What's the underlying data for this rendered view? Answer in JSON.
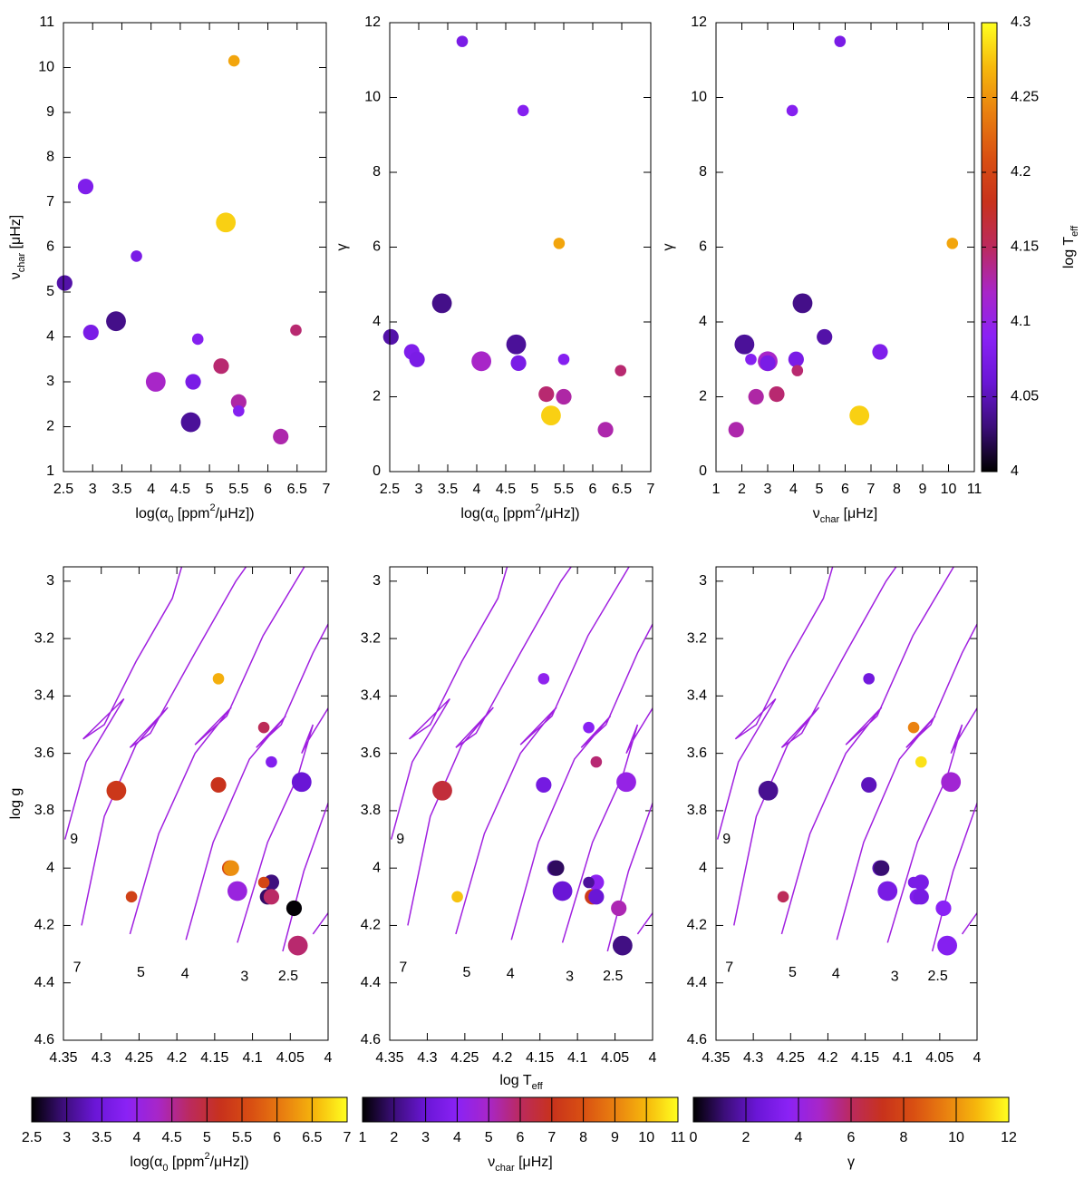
{
  "chart_data": [
    {
      "type": "scatter",
      "x": [
        2.52,
        2.88,
        2.97,
        3.4,
        3.75,
        4.08,
        4.68,
        4.72,
        4.8,
        5.2,
        5.28,
        5.42,
        5.5,
        5.5,
        6.22,
        6.48
      ],
      "y": [
        5.2,
        7.35,
        4.1,
        4.35,
        5.8,
        3.0,
        2.1,
        3.0,
        3.95,
        3.35,
        6.55,
        10.15,
        2.55,
        2.35,
        1.78,
        4.15
      ],
      "c": [
        4.045,
        4.08,
        4.075,
        4.035,
        4.075,
        4.12,
        4.04,
        4.075,
        4.085,
        4.145,
        4.28,
        4.26,
        4.13,
        4.085,
        4.128,
        4.145
      ],
      "sizes": [
        2,
        2,
        2,
        3,
        1,
        3,
        3,
        2,
        1,
        2,
        3,
        1,
        2,
        1,
        2,
        1
      ],
      "xlim": [
        2.5,
        7
      ],
      "xticks": [
        2.5,
        3,
        3.5,
        4,
        4.5,
        5,
        5.5,
        6,
        6.5,
        7
      ],
      "ylim": [
        1,
        11
      ],
      "yticks": [
        1,
        2,
        3,
        4,
        5,
        6,
        7,
        8,
        9,
        10,
        11
      ],
      "clim": [
        4,
        4.3
      ],
      "colormap": [
        "#000000",
        "#3c0e7a",
        "#6a16d6",
        "#8a22f5",
        "#a826c8",
        "#bb2a5e",
        "#c8321c",
        "#d95012",
        "#e98010",
        "#f6b80c",
        "#ffff20"
      ],
      "xlabel": [
        {
          "text": "log(α"
        },
        {
          "text": "0",
          "sub": true
        },
        {
          "text": " [ppm"
        },
        {
          "text": "2",
          "sup": true
        },
        {
          "text": "/μHz])"
        }
      ],
      "ylabel": [
        {
          "text": "ν"
        },
        {
          "text": "char",
          "sub": true
        },
        {
          "text": " [μHz]"
        }
      ]
    },
    {
      "type": "scatter",
      "x": [
        2.52,
        2.88,
        2.97,
        3.4,
        3.75,
        4.08,
        4.68,
        4.72,
        4.8,
        5.2,
        5.28,
        5.42,
        5.5,
        5.5,
        6.22,
        6.48
      ],
      "y": [
        3.6,
        3.2,
        3.0,
        4.5,
        11.5,
        2.95,
        3.4,
        2.9,
        9.65,
        2.07,
        1.5,
        6.1,
        2.0,
        3.0,
        1.12,
        2.7
      ],
      "c": [
        4.045,
        4.08,
        4.075,
        4.035,
        4.075,
        4.12,
        4.04,
        4.075,
        4.085,
        4.145,
        4.28,
        4.26,
        4.13,
        4.085,
        4.128,
        4.145
      ],
      "sizes": [
        2,
        2,
        2,
        3,
        1,
        3,
        3,
        2,
        1,
        2,
        3,
        1,
        2,
        1,
        2,
        1
      ],
      "xlim": [
        2.5,
        7
      ],
      "xticks": [
        2.5,
        3,
        3.5,
        4,
        4.5,
        5,
        5.5,
        6,
        6.5,
        7
      ],
      "ylim": [
        0,
        12
      ],
      "yticks": [
        0,
        2,
        4,
        6,
        8,
        10,
        12
      ],
      "clim": [
        4,
        4.3
      ],
      "colormap": [
        "#000000",
        "#3c0e7a",
        "#6a16d6",
        "#8a22f5",
        "#a826c8",
        "#bb2a5e",
        "#c8321c",
        "#d95012",
        "#e98010",
        "#f6b80c",
        "#ffff20"
      ],
      "xlabel": [
        {
          "text": "log(α"
        },
        {
          "text": "0",
          "sub": true
        },
        {
          "text": " [ppm"
        },
        {
          "text": "2",
          "sup": true
        },
        {
          "text": "/μHz])"
        }
      ],
      "ylabel": "γ"
    },
    {
      "type": "scatter",
      "x": [
        5.2,
        7.35,
        4.1,
        4.35,
        5.8,
        3.0,
        2.1,
        3.0,
        3.95,
        3.35,
        6.55,
        10.15,
        2.55,
        2.35,
        1.78,
        4.15
      ],
      "y": [
        3.6,
        3.2,
        3.0,
        4.5,
        11.5,
        2.95,
        3.4,
        2.9,
        9.65,
        2.07,
        1.5,
        6.1,
        2.0,
        3.0,
        1.12,
        2.7
      ],
      "c": [
        4.045,
        4.08,
        4.075,
        4.035,
        4.075,
        4.12,
        4.04,
        4.075,
        4.085,
        4.145,
        4.28,
        4.26,
        4.13,
        4.085,
        4.128,
        4.145
      ],
      "sizes": [
        2,
        2,
        2,
        3,
        1,
        3,
        3,
        2,
        1,
        2,
        3,
        1,
        2,
        1,
        2,
        1
      ],
      "xlim": [
        1,
        11
      ],
      "xticks": [
        1,
        2,
        3,
        4,
        5,
        6,
        7,
        8,
        9,
        10,
        11
      ],
      "ylim": [
        0,
        12
      ],
      "yticks": [
        0,
        2,
        4,
        6,
        8,
        10,
        12
      ],
      "clim": [
        4,
        4.3
      ],
      "colormap": [
        "#000000",
        "#3c0e7a",
        "#6a16d6",
        "#8a22f5",
        "#a826c8",
        "#bb2a5e",
        "#c8321c",
        "#d95012",
        "#e98010",
        "#f6b80c",
        "#ffff20"
      ],
      "colorbar": {
        "ticks": [
          4,
          4.05,
          4.1,
          4.15,
          4.2,
          4.25,
          4.3
        ],
        "label": [
          {
            "text": "log T"
          },
          {
            "text": "eff",
            "sub": true
          }
        ]
      },
      "xlabel": [
        {
          "text": "ν"
        },
        {
          "text": "char",
          "sub": true
        },
        {
          "text": " [μHz]"
        }
      ],
      "ylabel": "γ"
    },
    {
      "type": "scatter",
      "x": [
        4.045,
        4.08,
        4.075,
        4.035,
        4.075,
        4.12,
        4.04,
        4.075,
        4.085,
        4.145,
        4.28,
        4.26,
        4.13,
        4.085,
        4.128,
        4.145
      ],
      "y": [
        4.14,
        4.1,
        4.05,
        3.7,
        3.63,
        4.08,
        4.27,
        4.1,
        3.51,
        3.71,
        3.73,
        4.1,
        4.0,
        4.05,
        4.0,
        3.34
      ],
      "c": [
        2.52,
        2.88,
        2.97,
        3.4,
        3.75,
        4.08,
        4.68,
        4.72,
        4.8,
        5.2,
        5.28,
        5.42,
        5.5,
        5.5,
        6.22,
        6.48
      ],
      "sizes": [
        2,
        2,
        2,
        3,
        1,
        3,
        3,
        2,
        1,
        2,
        3,
        1,
        2,
        1,
        2,
        1
      ],
      "xlim": [
        4.35,
        4
      ],
      "xticks": [
        4.35,
        4.3,
        4.25,
        4.2,
        4.15,
        4.1,
        4.05,
        4
      ],
      "ylim": [
        4.6,
        2.95
      ],
      "yticks": [
        3,
        3.2,
        3.4,
        3.6,
        3.8,
        4,
        4.2,
        4.4,
        4.6
      ],
      "clim": [
        2.5,
        7
      ],
      "colormap": [
        "#000000",
        "#3c0e7a",
        "#6a16d6",
        "#8a22f5",
        "#a826c8",
        "#bb2a5e",
        "#c8321c",
        "#d95012",
        "#e98010",
        "#f6b80c",
        "#ffff20"
      ],
      "colorbar": {
        "ticks": [
          2.5,
          3,
          3.5,
          4,
          4.5,
          5,
          5.5,
          6,
          6.5,
          7
        ],
        "label": [
          {
            "text": "log(α"
          },
          {
            "text": "0",
            "sub": true
          },
          {
            "text": " [ppm"
          },
          {
            "text": "2",
            "sup": true
          },
          {
            "text": "/μHz])"
          }
        ]
      },
      "track_color": "#a020e0",
      "tracks": [
        {
          "label": "9",
          "x": [
            4.348,
            4.32,
            4.27,
            4.324,
            4.296,
            4.254,
            4.206,
            4.188
          ],
          "y": [
            3.9,
            3.63,
            3.41,
            3.55,
            3.5,
            3.28,
            3.06,
            2.9
          ]
        },
        {
          "label": "7",
          "x": [
            4.326,
            4.296,
            4.254,
            4.212,
            4.262,
            4.235,
            4.176,
            4.122,
            4.095
          ],
          "y": [
            4.2,
            3.82,
            3.57,
            3.44,
            3.58,
            3.53,
            3.25,
            3.0,
            2.9
          ]
        },
        {
          "label": "5",
          "x": [
            4.262,
            4.224,
            4.176,
            4.128,
            4.176,
            4.134,
            4.086,
            4.02
          ],
          "y": [
            4.23,
            3.88,
            3.6,
            3.44,
            3.57,
            3.47,
            3.19,
            2.9
          ]
        },
        {
          "label": "4",
          "x": [
            4.188,
            4.152,
            4.104,
            4.056,
            4.095,
            4.062,
            4.02,
            3.99
          ],
          "y": [
            4.25,
            3.91,
            3.62,
            3.47,
            3.58,
            3.5,
            3.25,
            3.1
          ]
        },
        {
          "label": "3",
          "x": [
            4.12,
            4.08,
            4.04,
            4.02,
            4.035,
            4.025,
            3.99
          ],
          "y": [
            4.26,
            3.91,
            3.68,
            3.5,
            3.6,
            3.55,
            3.4
          ]
        },
        {
          "label": "2.5",
          "x": [
            4.06,
            4.032,
            3.99
          ],
          "y": [
            4.29,
            4.01,
            3.7
          ]
        },
        {
          "label": null,
          "x": [
            4.02,
            3.99
          ],
          "y": [
            4.23,
            4.12
          ]
        }
      ],
      "ylabel": "log g"
    },
    {
      "type": "scatter",
      "x": [
        4.045,
        4.08,
        4.075,
        4.035,
        4.075,
        4.12,
        4.04,
        4.075,
        4.085,
        4.145,
        4.28,
        4.26,
        4.13,
        4.085,
        4.128,
        4.145
      ],
      "y": [
        4.14,
        4.1,
        4.05,
        3.7,
        3.63,
        4.08,
        4.27,
        4.1,
        3.51,
        3.71,
        3.73,
        4.1,
        4.0,
        4.05,
        4.0,
        3.34
      ],
      "c": [
        5.2,
        7.35,
        4.1,
        4.35,
        5.8,
        3.0,
        2.1,
        3.0,
        3.95,
        3.35,
        6.55,
        10.15,
        2.55,
        2.35,
        1.78,
        4.15
      ],
      "sizes": [
        2,
        2,
        2,
        3,
        1,
        3,
        3,
        2,
        1,
        2,
        3,
        1,
        2,
        1,
        2,
        1
      ],
      "xlim": [
        4.35,
        4
      ],
      "xticks": [
        4.35,
        4.3,
        4.25,
        4.2,
        4.15,
        4.1,
        4.05,
        4
      ],
      "ylim": [
        4.6,
        2.95
      ],
      "yticks": [
        3,
        3.2,
        3.4,
        3.6,
        3.8,
        4,
        4.2,
        4.4,
        4.6
      ],
      "clim": [
        1,
        11
      ],
      "colormap": [
        "#000000",
        "#3c0e7a",
        "#6a16d6",
        "#8a22f5",
        "#a826c8",
        "#bb2a5e",
        "#c8321c",
        "#d95012",
        "#e98010",
        "#f6b80c",
        "#ffff20"
      ],
      "colorbar": {
        "ticks": [
          1,
          2,
          3,
          4,
          5,
          6,
          7,
          8,
          9,
          10,
          11
        ],
        "label": [
          {
            "text": "ν"
          },
          {
            "text": "char",
            "sub": true
          },
          {
            "text": " [μHz]"
          }
        ]
      },
      "xlabel": [
        {
          "text": "log T"
        },
        {
          "text": "eff",
          "sub": true
        }
      ]
    },
    {
      "type": "scatter",
      "x": [
        4.045,
        4.08,
        4.075,
        4.035,
        4.075,
        4.12,
        4.04,
        4.075,
        4.085,
        4.145,
        4.28,
        4.26,
        4.13,
        4.085,
        4.128,
        4.145
      ],
      "y": [
        4.14,
        4.1,
        4.05,
        3.7,
        3.63,
        4.08,
        4.27,
        4.1,
        3.51,
        3.71,
        3.73,
        4.1,
        4.0,
        4.05,
        4.0,
        3.34
      ],
      "c": [
        3.6,
        3.2,
        3.0,
        4.5,
        11.5,
        2.95,
        3.4,
        2.9,
        9.65,
        2.07,
        1.5,
        6.1,
        2.0,
        3.0,
        1.12,
        2.7
      ],
      "sizes": [
        2,
        2,
        2,
        3,
        1,
        3,
        3,
        2,
        1,
        2,
        3,
        1,
        2,
        1,
        2,
        1
      ],
      "xlim": [
        4.35,
        4
      ],
      "xticks": [
        4.35,
        4.3,
        4.25,
        4.2,
        4.15,
        4.1,
        4.05,
        4
      ],
      "ylim": [
        4.6,
        2.95
      ],
      "yticks": [
        3,
        3.2,
        3.4,
        3.6,
        3.8,
        4,
        4.2,
        4.4,
        4.6
      ],
      "clim": [
        0,
        12
      ],
      "colormap": [
        "#000000",
        "#3c0e7a",
        "#6a16d6",
        "#8a22f5",
        "#a826c8",
        "#bb2a5e",
        "#c8321c",
        "#d95012",
        "#e98010",
        "#f6b80c",
        "#ffff20"
      ],
      "colorbar": {
        "ticks": [
          0,
          2,
          4,
          6,
          8,
          10,
          12
        ],
        "label": "γ"
      }
    }
  ]
}
